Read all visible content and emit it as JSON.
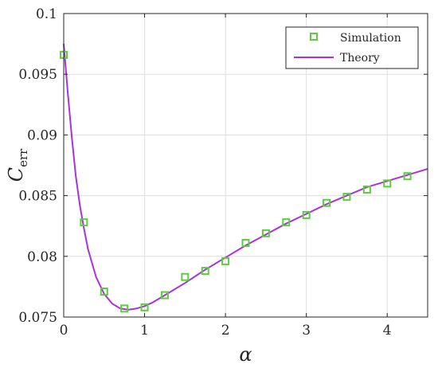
{
  "chart_data": {
    "type": "scatter",
    "xlabel": "α",
    "ylabel": "C",
    "ylabel_subscript": "err",
    "xlim": [
      0,
      4.5
    ],
    "ylim": [
      0.075,
      0.1
    ],
    "xticks": [
      0,
      1,
      2,
      3,
      4
    ],
    "xtick_labels": [
      "0",
      "1",
      "2",
      "3",
      "4"
    ],
    "yticks": [
      0.075,
      0.08,
      0.085,
      0.09,
      0.095,
      0.1
    ],
    "ytick_labels": [
      "0.075",
      "0.08",
      "0.085",
      "0.09",
      "0.095",
      "0.1"
    ],
    "grid": true,
    "legend_position": "top-right",
    "colors": {
      "simulation": "#5ccd3c",
      "theory": "#a832e0",
      "grid": "#dedede",
      "axis": "#262626"
    },
    "series": [
      {
        "name": "Simulation",
        "kind": "markers",
        "marker": "square",
        "x": [
          0,
          0.25,
          0.5,
          0.75,
          1.0,
          1.25,
          1.5,
          1.75,
          2.0,
          2.25,
          2.5,
          2.75,
          3.0,
          3.25,
          3.5,
          3.75,
          4.0,
          4.25
        ],
        "y": [
          0.0966,
          0.0828,
          0.0771,
          0.0757,
          0.0758,
          0.0768,
          0.0783,
          0.0788,
          0.0796,
          0.0811,
          0.0819,
          0.0828,
          0.0834,
          0.0844,
          0.0849,
          0.0855,
          0.086,
          0.0866
        ]
      },
      {
        "name": "Theory",
        "kind": "line",
        "x": [
          0,
          0.05,
          0.1,
          0.15,
          0.2,
          0.25,
          0.3,
          0.4,
          0.5,
          0.6,
          0.7,
          0.8,
          0.9,
          1.0,
          1.1,
          1.25,
          1.5,
          1.75,
          2.0,
          2.25,
          2.5,
          2.75,
          3.0,
          3.25,
          3.5,
          3.75,
          4.0,
          4.25,
          4.5
        ],
        "y": [
          0.0975,
          0.0935,
          0.0898,
          0.0866,
          0.0842,
          0.0823,
          0.0806,
          0.0783,
          0.0769,
          0.0761,
          0.0757,
          0.0756,
          0.0757,
          0.0759,
          0.0762,
          0.0768,
          0.0778,
          0.0789,
          0.0799,
          0.0809,
          0.0818,
          0.0827,
          0.0835,
          0.0843,
          0.085,
          0.0857,
          0.0862,
          0.0867,
          0.0872
        ]
      }
    ]
  }
}
